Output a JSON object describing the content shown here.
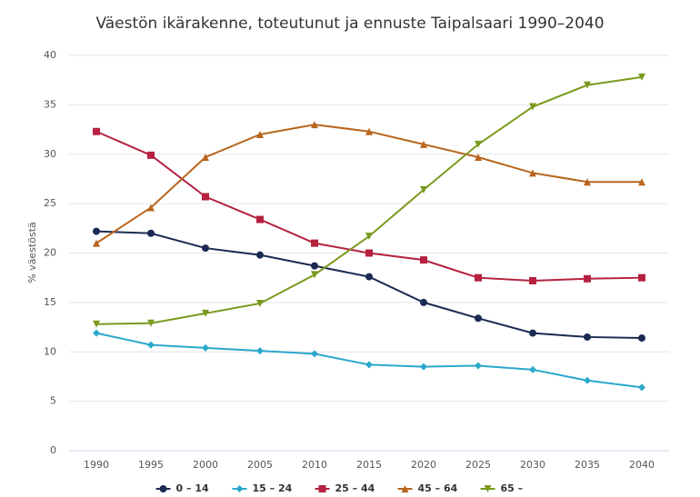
{
  "chart_data": {
    "type": "line",
    "title": "Väestön ikärakenne, toteutunut ja ennuste Taipalsaari 1990–2040",
    "y_label": "% väestöstä",
    "categories": [
      "1990",
      "1995",
      "2000",
      "2005",
      "2010",
      "2015",
      "2020",
      "2025",
      "2030",
      "2035",
      "2040"
    ],
    "series": [
      {
        "name": "0 – 14",
        "color": "#1b2a52",
        "marker": "circle",
        "values": [
          22.2,
          22.0,
          20.5,
          19.8,
          18.7,
          17.6,
          15.0,
          13.4,
          11.9,
          11.5,
          11.4
        ]
      },
      {
        "name": "15 – 24",
        "color": "#2aa8cc",
        "marker": "diamond",
        "values": [
          11.9,
          10.7,
          10.4,
          10.1,
          9.8,
          8.7,
          8.5,
          8.6,
          8.2,
          7.1,
          6.4
        ]
      },
      {
        "name": "25 – 44",
        "color": "#b5213f",
        "marker": "square",
        "values": [
          32.3,
          29.9,
          25.7,
          23.4,
          21.0,
          20.0,
          19.3,
          17.5,
          17.2,
          17.4,
          17.5
        ]
      },
      {
        "name": "45 – 64",
        "color": "#b8651e",
        "marker": "triangle-up",
        "values": [
          21.0,
          24.6,
          29.7,
          32.0,
          33.0,
          32.3,
          31.0,
          29.7,
          28.1,
          27.2,
          27.2
        ]
      },
      {
        "name": "65 –",
        "color": "#7a9a1e",
        "marker": "triangle-down",
        "values": [
          12.8,
          12.9,
          13.9,
          14.9,
          17.8,
          21.7,
          26.4,
          31.0,
          34.8,
          37.0,
          37.8
        ]
      }
    ],
    "ylim": [
      0,
      40
    ],
    "yticks": [
      0,
      5,
      10,
      15,
      20,
      25,
      30,
      35,
      40
    ],
    "grid": true,
    "legend": "bottom"
  }
}
